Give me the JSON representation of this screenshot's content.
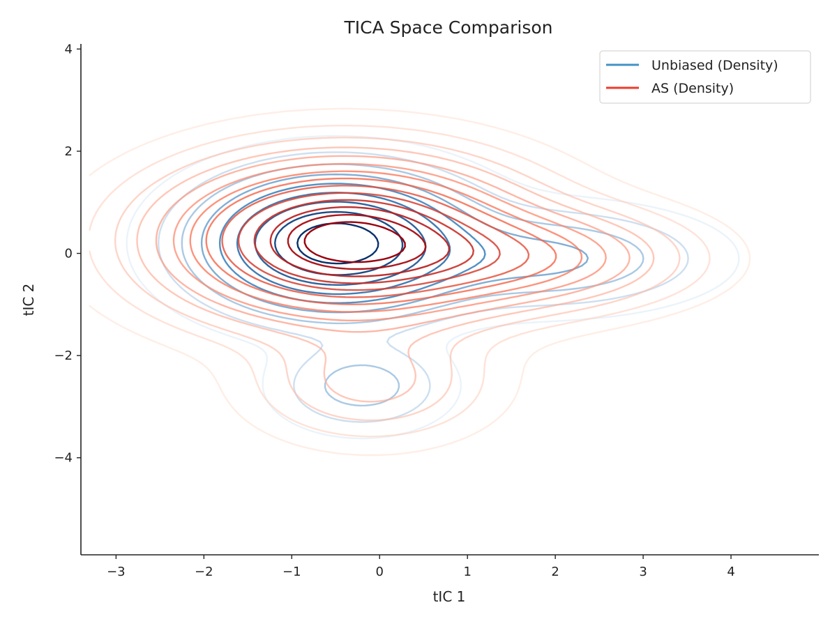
{
  "chart_data": {
    "type": "contour",
    "title": "TICA Space Comparison",
    "xlabel": "tIC 1",
    "ylabel": "tIC 2",
    "xlim": [
      -3.4,
      5.0
    ],
    "ylim": [
      -5.9,
      4.1
    ],
    "xticks": [
      -3,
      -2,
      -1,
      0,
      1,
      2,
      3,
      4
    ],
    "xtick_labels": [
      "−3",
      "−2",
      "−1",
      "0",
      "1",
      "2",
      "3",
      "4"
    ],
    "yticks": [
      -4,
      -2,
      0,
      2,
      4
    ],
    "ytick_labels": [
      "−4",
      "−2",
      "0",
      "2",
      "4"
    ],
    "grid": false,
    "legend_position": "top-right",
    "series": [
      {
        "name": "Unbiased (Density)",
        "legend_color": "#4292c6",
        "colormap": [
          "#dbe9f6",
          "#2171b5",
          "#08306b"
        ],
        "components": [
          {
            "weight": 1.0,
            "mean": [
              -0.5,
              0.2
            ],
            "sd": [
              0.85,
              0.75
            ],
            "rotation": 0
          },
          {
            "weight": 0.22,
            "mean": [
              1.9,
              -0.1
            ],
            "sd": [
              1.0,
              0.55
            ],
            "rotation": 0
          },
          {
            "weight": 0.16,
            "mean": [
              -0.2,
              -2.6
            ],
            "sd": [
              0.55,
              0.5
            ],
            "rotation": 0
          }
        ],
        "levels": [
          0.02,
          0.06,
          0.12,
          0.2,
          0.3,
          0.42,
          0.56,
          0.72,
          0.88
        ]
      },
      {
        "name": "AS (Density)",
        "legend_color": "#ef3b2c",
        "colormap": [
          "#fee0d2",
          "#fb6a4a",
          "#99000d"
        ],
        "components": [
          {
            "weight": 1.0,
            "mean": [
              -0.4,
              0.25
            ],
            "sd": [
              1.1,
              0.85
            ],
            "rotation": 0
          },
          {
            "weight": 0.3,
            "mean": [
              1.6,
              -0.1
            ],
            "sd": [
              1.0,
              0.55
            ],
            "rotation": 0
          },
          {
            "weight": 0.12,
            "mean": [
              -0.1,
              -2.5
            ],
            "sd": [
              0.75,
              0.65
            ],
            "rotation": 0
          }
        ],
        "levels": [
          0.01,
          0.03,
          0.06,
          0.1,
          0.15,
          0.21,
          0.28,
          0.36,
          0.45,
          0.55,
          0.65,
          0.75,
          0.85,
          0.93
        ]
      }
    ]
  }
}
